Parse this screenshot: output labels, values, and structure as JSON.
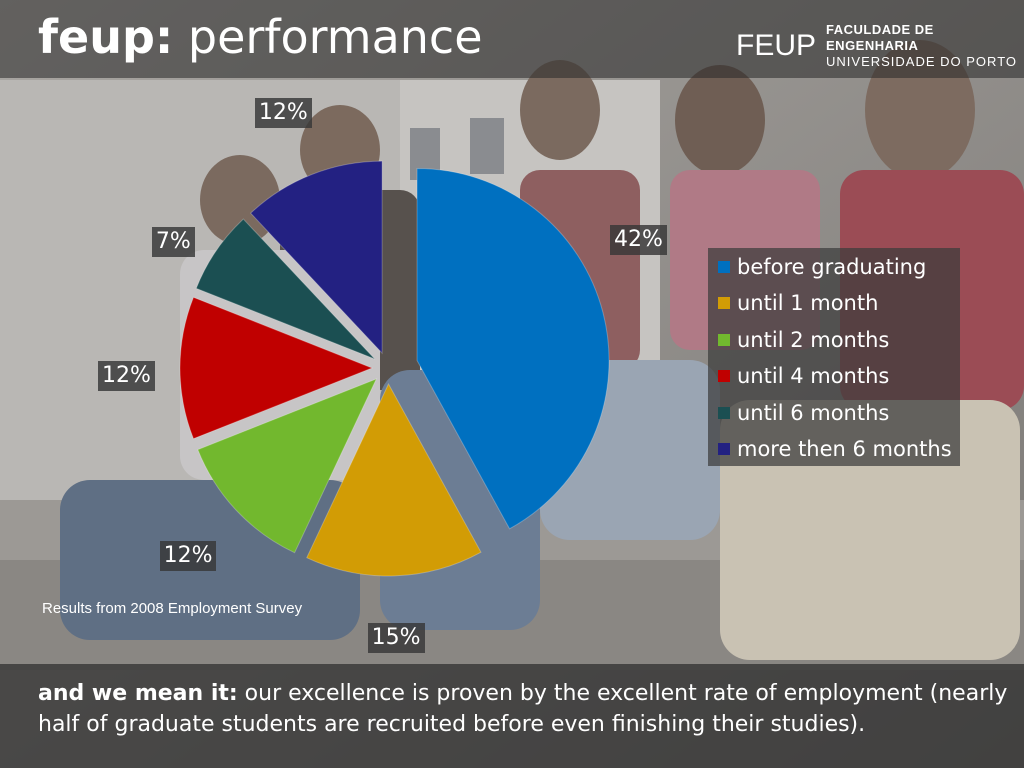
{
  "header": {
    "title_bold": "feup:",
    "title_rest": "performance",
    "logo_mark": "FEUP",
    "logo_line1": "FACULDADE DE ENGENHARIA",
    "logo_line2": "UNIVERSIDADE DO PORTO"
  },
  "chart_data": {
    "type": "pie",
    "title": "",
    "categories": [
      "before graduating",
      "until 1 month",
      "until 2 months",
      "until 4 months",
      "until 6 months",
      "more then 6 months"
    ],
    "values": [
      42,
      15,
      12,
      12,
      7,
      12
    ],
    "labels": [
      "42%",
      "15%",
      "12%",
      "12%",
      "7%",
      "12%"
    ],
    "colors": [
      "#0070c0",
      "#d29c05",
      "#72b82e",
      "#c00000",
      "#1b4f52",
      "#232182"
    ],
    "exploded": true,
    "legend_position": "right"
  },
  "source_note": "Results from 2008 Employment Survey",
  "footer": {
    "lead": "and we mean it:",
    "text": " our excellence is proven by the excellent rate of employment (nearly half of graduate students are recruited before even finishing their studies)."
  }
}
